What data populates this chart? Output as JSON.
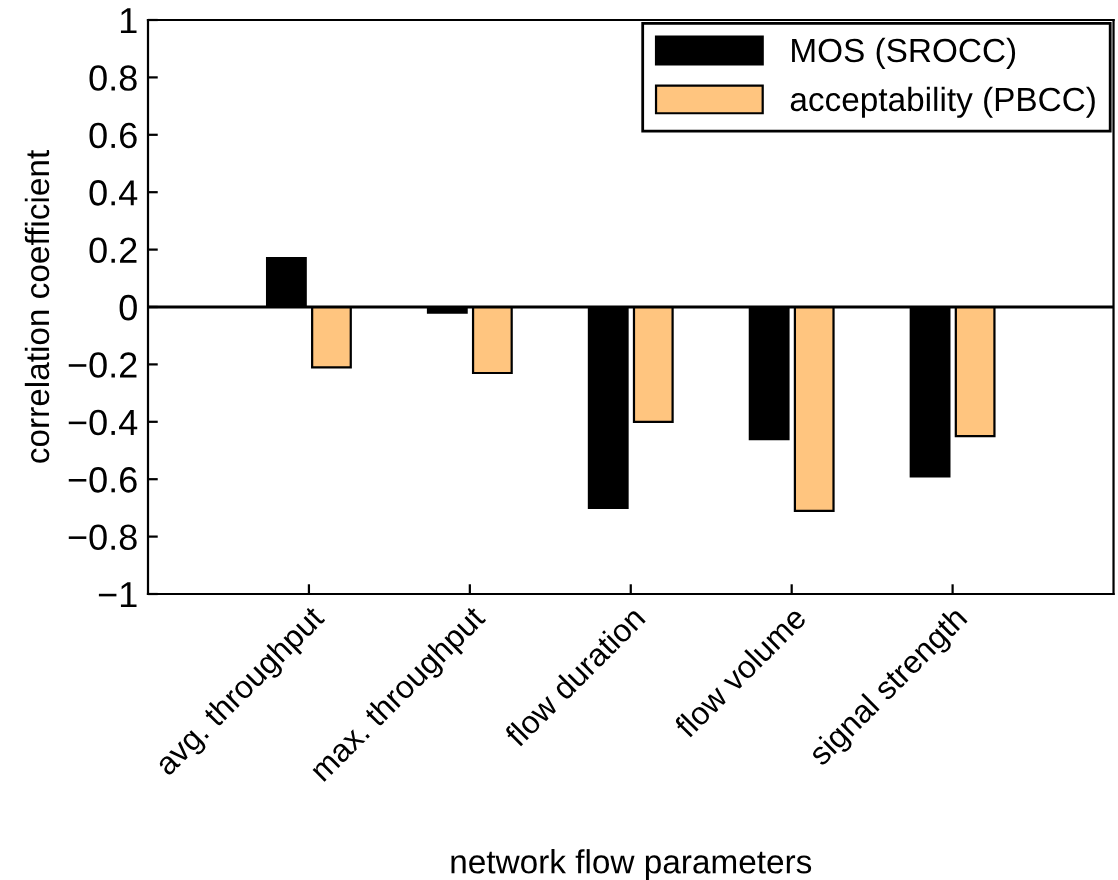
{
  "chart_data": {
    "type": "bar",
    "xlabel": "network flow parameters",
    "ylabel": "correlation coefficient",
    "categories": [
      "avg. throughput",
      "max. throughput",
      "flow duration",
      "flow volume",
      "signal strength"
    ],
    "series": [
      {
        "name": "MOS (SROCC)",
        "color": "#000000",
        "values": [
          0.17,
          -0.02,
          -0.7,
          -0.46,
          -0.59
        ]
      },
      {
        "name": "acceptability (PBCC)",
        "color": "#ffc57f",
        "values": [
          -0.21,
          -0.23,
          -0.4,
          -0.71,
          -0.45
        ]
      }
    ],
    "ylim": [
      -1,
      1
    ],
    "yticks": [
      {
        "value": -1,
        "label": "−1"
      },
      {
        "value": -0.8,
        "label": "−0.8"
      },
      {
        "value": -0.6,
        "label": "−0.6"
      },
      {
        "value": -0.4,
        "label": "−0.4"
      },
      {
        "value": -0.2,
        "label": "−0.2"
      },
      0,
      0.2,
      0.4,
      0.6,
      0.8,
      1
    ],
    "ref_lines": [
      {
        "axis": "y",
        "value": 0,
        "color": "#000000"
      }
    ],
    "legend": "top right",
    "grid": false
  }
}
